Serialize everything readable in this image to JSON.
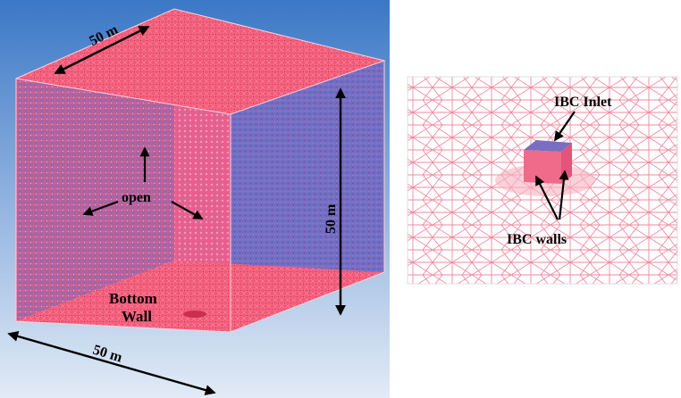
{
  "left_panel": {
    "top_dimension": "50 m",
    "side_dimension": "50 m",
    "bottom_dimension": "50 m",
    "open_label": "open",
    "bottom_wall_line1": "Bottom",
    "bottom_wall_line2": "Wall"
  },
  "right_panel": {
    "inlet_label": "IBC Inlet",
    "walls_label": "IBC walls"
  },
  "colors": {
    "mesh_pink": "#f0506e",
    "mesh_blue": "#6a6bc0",
    "sky_top": "#3f7fcb",
    "sky_bottom": "#dfe9f6",
    "arrow": "#000000"
  }
}
